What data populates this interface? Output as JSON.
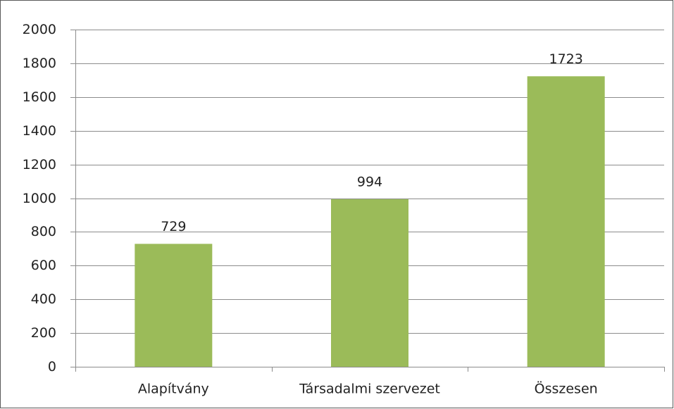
{
  "chart_data": {
    "type": "bar",
    "categories": [
      "Alapítvány",
      "Társadalmi szervezet",
      "Összesen"
    ],
    "values": [
      729,
      994,
      1723
    ],
    "color": "#9bbb59",
    "ylim": [
      0,
      2000
    ],
    "yticks": [
      0,
      200,
      400,
      600,
      800,
      1000,
      1200,
      1400,
      1600,
      1800,
      2000
    ],
    "grid": true
  }
}
